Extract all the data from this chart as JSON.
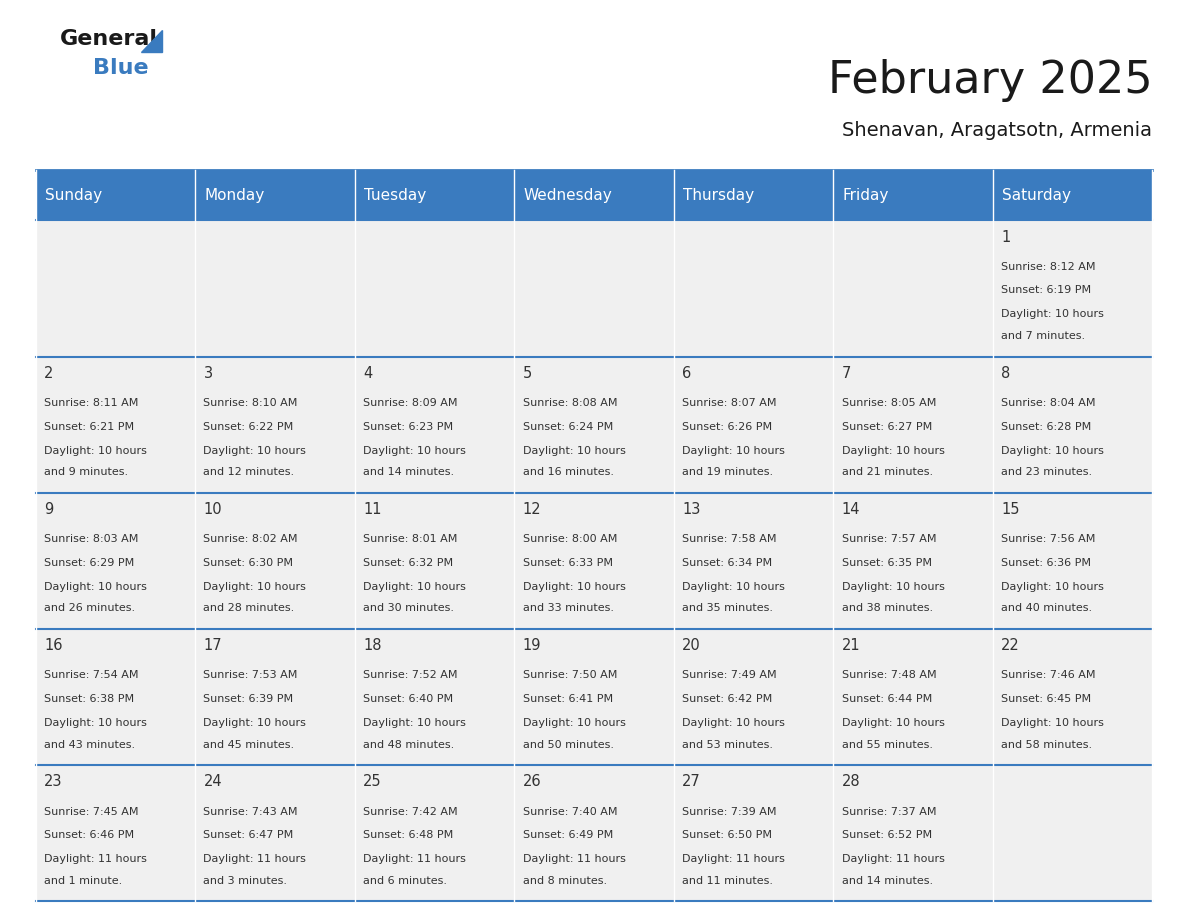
{
  "title": "February 2025",
  "subtitle": "Shenavan, Aragatsotn, Armenia",
  "days_of_week": [
    "Sunday",
    "Monday",
    "Tuesday",
    "Wednesday",
    "Thursday",
    "Friday",
    "Saturday"
  ],
  "header_bg": "#3a7bbf",
  "header_text": "#ffffff",
  "cell_bg_light": "#f0f0f0",
  "cell_bg_white": "#ffffff",
  "separator_color": "#3a7bbf",
  "text_color": "#333333",
  "calendar_data": [
    [
      null,
      null,
      null,
      null,
      null,
      null,
      {
        "day": 1,
        "sunrise": "8:12 AM",
        "sunset": "6:19 PM",
        "daylight": "10 hours and 7 minutes."
      }
    ],
    [
      {
        "day": 2,
        "sunrise": "8:11 AM",
        "sunset": "6:21 PM",
        "daylight": "10 hours and 9 minutes."
      },
      {
        "day": 3,
        "sunrise": "8:10 AM",
        "sunset": "6:22 PM",
        "daylight": "10 hours and 12 minutes."
      },
      {
        "day": 4,
        "sunrise": "8:09 AM",
        "sunset": "6:23 PM",
        "daylight": "10 hours and 14 minutes."
      },
      {
        "day": 5,
        "sunrise": "8:08 AM",
        "sunset": "6:24 PM",
        "daylight": "10 hours and 16 minutes."
      },
      {
        "day": 6,
        "sunrise": "8:07 AM",
        "sunset": "6:26 PM",
        "daylight": "10 hours and 19 minutes."
      },
      {
        "day": 7,
        "sunrise": "8:05 AM",
        "sunset": "6:27 PM",
        "daylight": "10 hours and 21 minutes."
      },
      {
        "day": 8,
        "sunrise": "8:04 AM",
        "sunset": "6:28 PM",
        "daylight": "10 hours and 23 minutes."
      }
    ],
    [
      {
        "day": 9,
        "sunrise": "8:03 AM",
        "sunset": "6:29 PM",
        "daylight": "10 hours and 26 minutes."
      },
      {
        "day": 10,
        "sunrise": "8:02 AM",
        "sunset": "6:30 PM",
        "daylight": "10 hours and 28 minutes."
      },
      {
        "day": 11,
        "sunrise": "8:01 AM",
        "sunset": "6:32 PM",
        "daylight": "10 hours and 30 minutes."
      },
      {
        "day": 12,
        "sunrise": "8:00 AM",
        "sunset": "6:33 PM",
        "daylight": "10 hours and 33 minutes."
      },
      {
        "day": 13,
        "sunrise": "7:58 AM",
        "sunset": "6:34 PM",
        "daylight": "10 hours and 35 minutes."
      },
      {
        "day": 14,
        "sunrise": "7:57 AM",
        "sunset": "6:35 PM",
        "daylight": "10 hours and 38 minutes."
      },
      {
        "day": 15,
        "sunrise": "7:56 AM",
        "sunset": "6:36 PM",
        "daylight": "10 hours and 40 minutes."
      }
    ],
    [
      {
        "day": 16,
        "sunrise": "7:54 AM",
        "sunset": "6:38 PM",
        "daylight": "10 hours and 43 minutes."
      },
      {
        "day": 17,
        "sunrise": "7:53 AM",
        "sunset": "6:39 PM",
        "daylight": "10 hours and 45 minutes."
      },
      {
        "day": 18,
        "sunrise": "7:52 AM",
        "sunset": "6:40 PM",
        "daylight": "10 hours and 48 minutes."
      },
      {
        "day": 19,
        "sunrise": "7:50 AM",
        "sunset": "6:41 PM",
        "daylight": "10 hours and 50 minutes."
      },
      {
        "day": 20,
        "sunrise": "7:49 AM",
        "sunset": "6:42 PM",
        "daylight": "10 hours and 53 minutes."
      },
      {
        "day": 21,
        "sunrise": "7:48 AM",
        "sunset": "6:44 PM",
        "daylight": "10 hours and 55 minutes."
      },
      {
        "day": 22,
        "sunrise": "7:46 AM",
        "sunset": "6:45 PM",
        "daylight": "10 hours and 58 minutes."
      }
    ],
    [
      {
        "day": 23,
        "sunrise": "7:45 AM",
        "sunset": "6:46 PM",
        "daylight": "11 hours and 1 minute."
      },
      {
        "day": 24,
        "sunrise": "7:43 AM",
        "sunset": "6:47 PM",
        "daylight": "11 hours and 3 minutes."
      },
      {
        "day": 25,
        "sunrise": "7:42 AM",
        "sunset": "6:48 PM",
        "daylight": "11 hours and 6 minutes."
      },
      {
        "day": 26,
        "sunrise": "7:40 AM",
        "sunset": "6:49 PM",
        "daylight": "11 hours and 8 minutes."
      },
      {
        "day": 27,
        "sunrise": "7:39 AM",
        "sunset": "6:50 PM",
        "daylight": "11 hours and 11 minutes."
      },
      {
        "day": 28,
        "sunrise": "7:37 AM",
        "sunset": "6:52 PM",
        "daylight": "11 hours and 14 minutes."
      },
      null
    ]
  ]
}
